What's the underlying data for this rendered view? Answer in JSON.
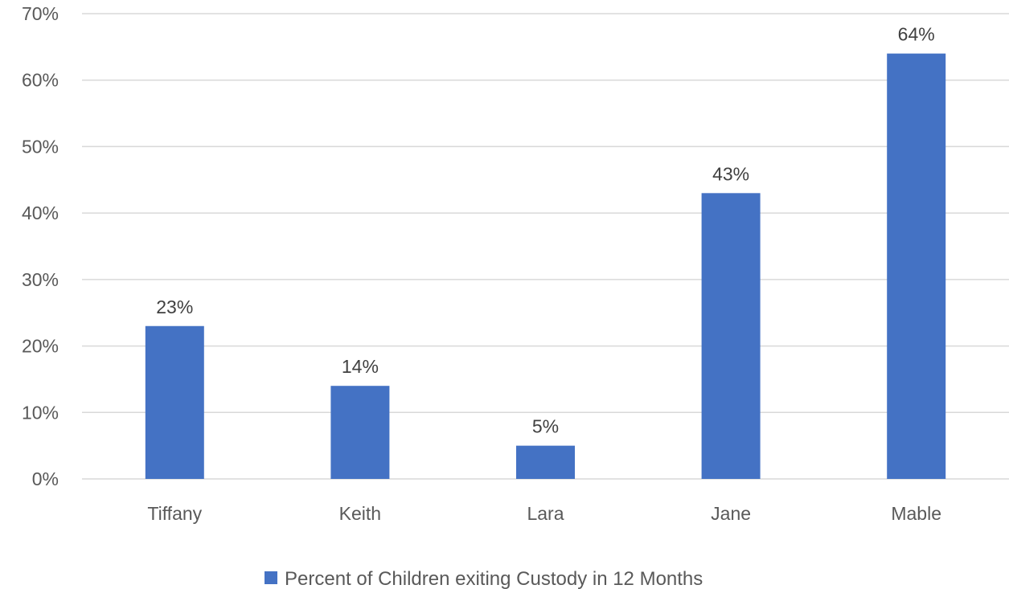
{
  "chart_data": {
    "type": "bar",
    "title": "",
    "xlabel": "",
    "ylabel": "",
    "categories": [
      "Tiffany",
      "Keith",
      "Lara",
      "Jane",
      "Mable"
    ],
    "series": [
      {
        "name": "Percent of Children exiting Custody in 12 Months",
        "values": [
          23,
          14,
          5,
          43,
          64
        ],
        "color": "#4472C4"
      }
    ],
    "data_labels": [
      "23%",
      "14%",
      "5%",
      "43%",
      "64%"
    ],
    "ylim": [
      0,
      70
    ],
    "yticks": [
      0,
      10,
      20,
      30,
      40,
      50,
      60,
      70
    ],
    "ytick_labels": [
      "0%",
      "10%",
      "20%",
      "30%",
      "40%",
      "50%",
      "60%",
      "70%"
    ],
    "grid": true,
    "gridline_color": "#D9D9D9",
    "legend_position": "bottom"
  }
}
